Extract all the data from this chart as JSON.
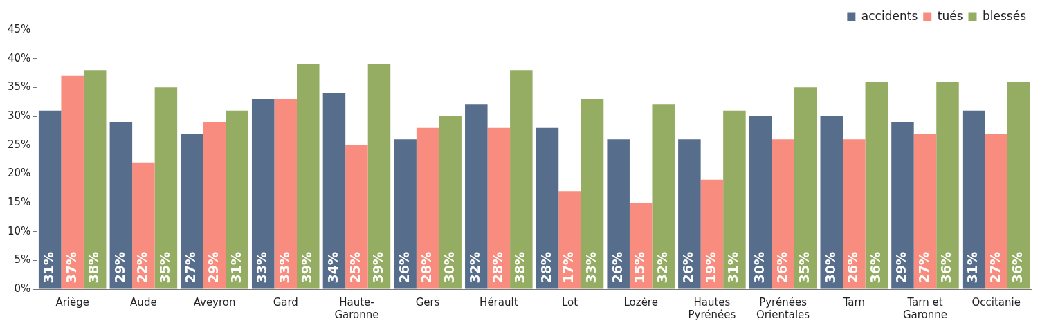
{
  "chart_data": {
    "type": "bar",
    "categories": [
      "Ariège",
      "Aude",
      "Aveyron",
      "Gard",
      "Haute-Garonne",
      "Gers",
      "Hérault",
      "Lot",
      "Lozère",
      "Hautes Pyrénées",
      "Pyrénées Orientales",
      "Tarn",
      "Tarn et Garonne",
      "Occitanie"
    ],
    "series": [
      {
        "name": "accidents",
        "color": "#566d8c",
        "values": [
          31,
          29,
          27,
          33,
          34,
          26,
          32,
          28,
          26,
          26,
          30,
          30,
          29,
          31
        ],
        "value_labels": [
          "31%",
          "29%",
          "27%",
          "33%",
          "34%",
          "26%",
          "32%",
          "28%",
          "26%",
          "26%",
          "30%",
          "30%",
          "29%",
          "31%"
        ]
      },
      {
        "name": "tués",
        "color": "#f88c7e",
        "values": [
          37,
          22,
          29,
          33,
          25,
          28,
          28,
          17,
          15,
          19,
          26,
          26,
          27,
          27
        ],
        "value_labels": [
          "37%",
          "22%",
          "29%",
          "33%",
          "25%",
          "28%",
          "28%",
          "17%",
          "15%",
          "19%",
          "26%",
          "26%",
          "27%",
          "27%"
        ]
      },
      {
        "name": "blessés",
        "color": "#94ad62",
        "values": [
          38,
          35,
          31,
          39,
          39,
          30,
          38,
          33,
          32,
          31,
          35,
          36,
          36,
          36
        ],
        "value_labels": [
          "38%",
          "35%",
          "31%",
          "39%",
          "39%",
          "30%",
          "38%",
          "33%",
          "32%",
          "31%",
          "35%",
          "36%",
          "36%",
          "36%"
        ]
      }
    ],
    "ylim": [
      0,
      45
    ],
    "yticks": [
      {
        "value": 0,
        "label": "0%"
      },
      {
        "value": 5,
        "label": "5%"
      },
      {
        "value": 10,
        "label": "10%"
      },
      {
        "value": 15,
        "label": "15%"
      },
      {
        "value": 20,
        "label": "20%"
      },
      {
        "value": 25,
        "label": "25%"
      },
      {
        "value": 30,
        "label": "30%"
      },
      {
        "value": 35,
        "label": "35%"
      },
      {
        "value": 40,
        "label": "40%"
      },
      {
        "value": 45,
        "label": "45%"
      }
    ],
    "grid": false,
    "legend": "top right"
  }
}
